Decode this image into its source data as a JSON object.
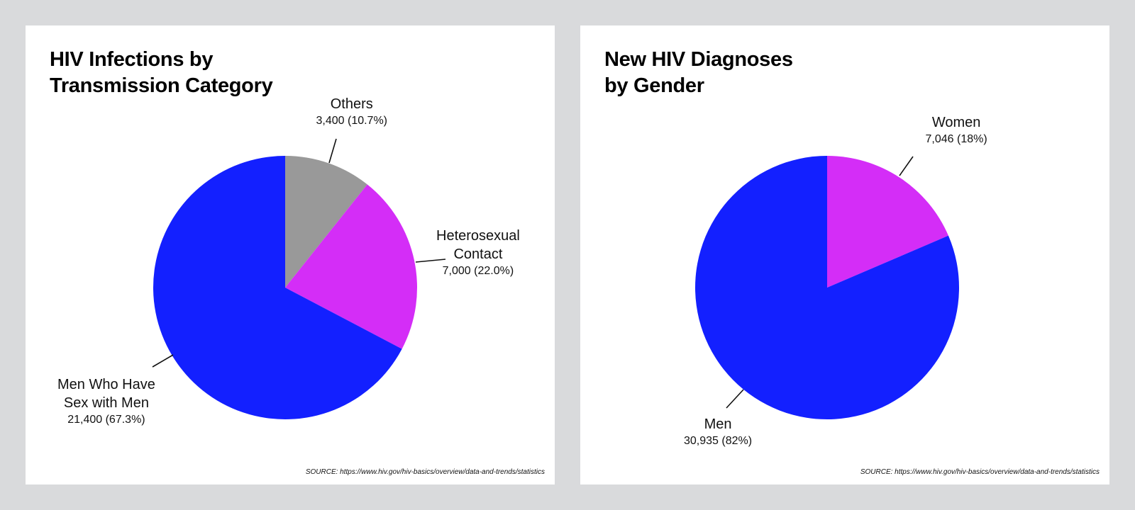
{
  "chart_data": [
    {
      "type": "pie",
      "title_lines": [
        "HIV Infections by",
        "Transmission Category"
      ],
      "slices": [
        {
          "label_lines": [
            "Others"
          ],
          "value": 3400,
          "value_text": "3,400 (10.7%)",
          "percent": 10.7,
          "color": "#999999"
        },
        {
          "label_lines": [
            "Heterosexual",
            "Contact"
          ],
          "value": 7000,
          "value_text": "7,000 (22.0%)",
          "percent": 22.0,
          "color": "#d42df7"
        },
        {
          "label_lines": [
            "Men Who Have",
            "Sex with Men"
          ],
          "value": 21400,
          "value_text": "21,400 (67.3%)",
          "percent": 67.3,
          "color": "#1320ff"
        }
      ],
      "source": "SOURCE: https://www.hiv.gov/hiv-basics/overview/data-and-trends/statistics"
    },
    {
      "type": "pie",
      "title_lines": [
        "New HIV Diagnoses",
        "by Gender"
      ],
      "slices": [
        {
          "label_lines": [
            "Women"
          ],
          "value": 7046,
          "value_text": "7,046 (18%)",
          "percent": 18,
          "color": "#d42df7"
        },
        {
          "label_lines": [
            "Men"
          ],
          "value": 30935,
          "value_text": "30,935 (82%)",
          "percent": 82,
          "color": "#1320ff"
        }
      ],
      "source": "SOURCE: https://www.hiv.gov/hiv-basics/overview/data-and-trends/statistics"
    }
  ]
}
